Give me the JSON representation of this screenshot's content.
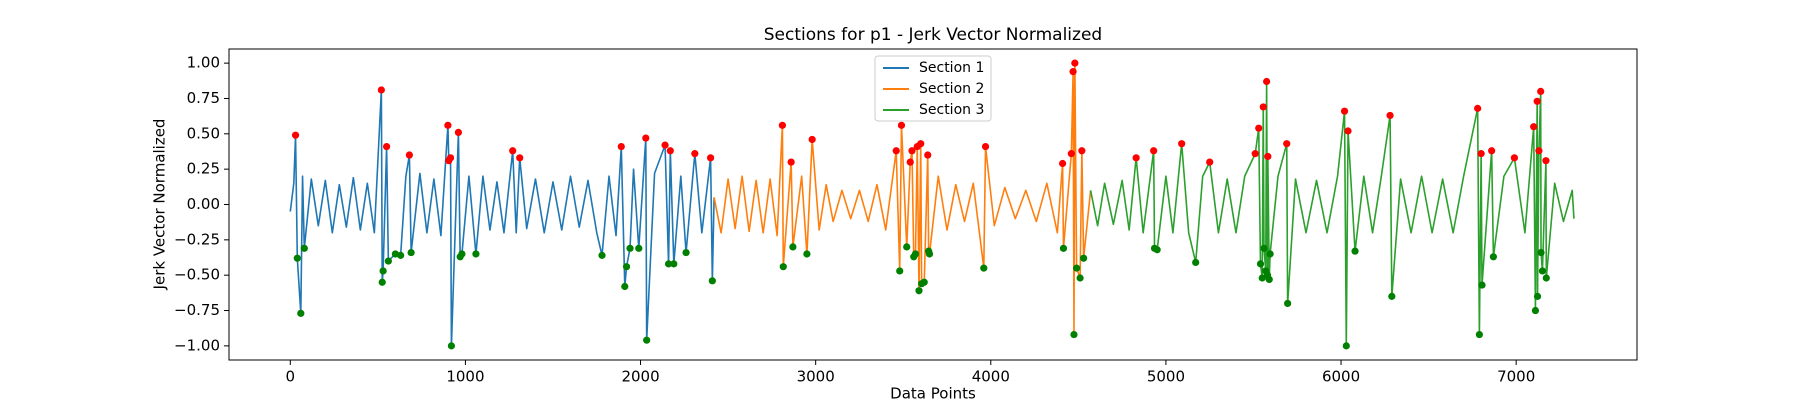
{
  "chart_data": {
    "type": "line",
    "title": "Sections for p1 - Jerk Vector Normalized",
    "xlabel": "Data Points",
    "ylabel": "Jerk Vector Normalized",
    "xlim": [
      -350,
      7690
    ],
    "ylim": [
      -1.1,
      1.1
    ],
    "xticks": [
      0,
      1000,
      2000,
      3000,
      4000,
      5000,
      6000,
      7000
    ],
    "yticks": [
      {
        "value": -1,
        "label": "−1.00"
      },
      {
        "value": -0.75,
        "label": "−0.75"
      },
      {
        "value": -0.5,
        "label": "−0.50"
      },
      {
        "value": -0.25,
        "label": "−0.25"
      },
      {
        "value": 0,
        "label": "0.00"
      },
      {
        "value": 0.25,
        "label": "0.25"
      },
      {
        "value": 0.5,
        "label": "0.50"
      },
      {
        "value": 0.75,
        "label": "0.75"
      },
      {
        "value": 1,
        "label": "1.00"
      }
    ],
    "legend": "upper center",
    "series": [
      {
        "name": "Section 1",
        "color": "#1f77b4",
        "x": [
          0,
          20,
          30,
          40,
          60,
          70,
          80,
          120,
          160,
          200,
          240,
          280,
          320,
          360,
          400,
          440,
          480,
          520,
          525,
          530,
          550,
          560,
          600,
          630,
          660,
          680,
          690,
          740,
          780,
          820,
          860,
          900,
          905,
          915,
          920,
          960,
          970,
          980,
          1020,
          1060,
          1100,
          1140,
          1180,
          1220,
          1270,
          1290,
          1310,
          1350,
          1400,
          1450,
          1500,
          1550,
          1600,
          1650,
          1700,
          1750,
          1780,
          1820,
          1860,
          1890,
          1910,
          1920,
          1940,
          1960,
          1990,
          2030,
          2035,
          2080,
          2140,
          2160,
          2170,
          2190,
          2230,
          2260,
          2310,
          2350,
          2400,
          2410,
          2420
        ],
        "values": [
          -0.05,
          0.15,
          0.49,
          -0.38,
          -0.77,
          0.2,
          -0.31,
          0.18,
          -0.15,
          0.17,
          -0.2,
          0.14,
          -0.16,
          0.19,
          -0.18,
          0.15,
          -0.2,
          0.81,
          -0.55,
          -0.47,
          0.41,
          -0.4,
          -0.35,
          -0.36,
          0.2,
          0.35,
          -0.34,
          0.22,
          -0.2,
          0.18,
          -0.22,
          0.56,
          0.31,
          0.33,
          -1.0,
          0.51,
          -0.37,
          -0.35,
          0.2,
          -0.35,
          0.2,
          -0.18,
          0.16,
          -0.2,
          0.38,
          -0.2,
          0.33,
          -0.17,
          0.18,
          -0.2,
          0.16,
          -0.18,
          0.2,
          -0.16,
          0.17,
          -0.2,
          -0.36,
          0.2,
          -0.22,
          0.41,
          -0.58,
          -0.44,
          -0.31,
          0.25,
          -0.31,
          0.47,
          -0.96,
          0.22,
          0.42,
          -0.42,
          0.38,
          -0.42,
          0.2,
          -0.34,
          0.36,
          -0.2,
          0.33,
          -0.54,
          0.05
        ]
      },
      {
        "name": "Section 2",
        "color": "#ff7f0e",
        "x": [
          2420,
          2460,
          2500,
          2540,
          2580,
          2620,
          2660,
          2700,
          2740,
          2780,
          2810,
          2815,
          2860,
          2870,
          2920,
          2950,
          2980,
          3020,
          3060,
          3100,
          3150,
          3200,
          3250,
          3300,
          3350,
          3400,
          3460,
          3480,
          3490,
          3520,
          3540,
          3550,
          3560,
          3570,
          3580,
          3590,
          3600,
          3605,
          3620,
          3640,
          3645,
          3650,
          3700,
          3750,
          3800,
          3850,
          3900,
          3960,
          3970,
          4020,
          4080,
          4140,
          4200,
          4260,
          4320,
          4380,
          4410,
          4415,
          4460,
          4470,
          4475,
          4480,
          4490,
          4510,
          4520,
          4530,
          4570
        ],
        "values": [
          0.05,
          -0.2,
          0.18,
          -0.17,
          0.2,
          -0.19,
          0.17,
          -0.2,
          0.18,
          -0.22,
          0.56,
          -0.44,
          0.3,
          -0.3,
          0.2,
          -0.35,
          0.46,
          -0.18,
          0.14,
          -0.12,
          0.1,
          -0.1,
          0.1,
          -0.12,
          0.14,
          -0.18,
          0.38,
          -0.47,
          0.56,
          -0.3,
          0.3,
          0.38,
          -0.37,
          -0.35,
          0.41,
          -0.61,
          0.43,
          -0.56,
          -0.55,
          0.35,
          -0.33,
          -0.35,
          0.2,
          -0.18,
          0.14,
          -0.12,
          0.15,
          -0.45,
          0.41,
          -0.15,
          0.12,
          -0.1,
          0.1,
          -0.12,
          0.15,
          -0.2,
          0.29,
          -0.31,
          0.36,
          0.94,
          -0.92,
          1.0,
          -0.45,
          -0.52,
          0.38,
          -0.38,
          0.1
        ]
      },
      {
        "name": "Section 3",
        "color": "#2ca02c",
        "x": [
          4570,
          4610,
          4650,
          4700,
          4750,
          4790,
          4830,
          4870,
          4930,
          4935,
          4950,
          5000,
          5040,
          5090,
          5130,
          5170,
          5210,
          5250,
          5300,
          5350,
          5400,
          5450,
          5510,
          5530,
          5540,
          5550,
          5556,
          5560,
          5570,
          5575,
          5580,
          5582,
          5590,
          5595,
          5640,
          5690,
          5695,
          5740,
          5800,
          5860,
          5920,
          5980,
          6020,
          6030,
          6040,
          6080,
          6130,
          6180,
          6230,
          6280,
          6290,
          6340,
          6400,
          6460,
          6520,
          6580,
          6640,
          6700,
          6780,
          6790,
          6800,
          6805,
          6860,
          6870,
          6930,
          6990,
          7050,
          7100,
          7110,
          7120,
          7122,
          7130,
          7140,
          7142,
          7150,
          7170,
          7172,
          7220,
          7270,
          7320,
          7330
        ],
        "values": [
          0.1,
          -0.15,
          0.15,
          -0.14,
          0.17,
          -0.18,
          0.33,
          -0.2,
          0.38,
          -0.31,
          -0.32,
          0.2,
          -0.2,
          0.43,
          -0.2,
          -0.41,
          0.2,
          0.3,
          -0.2,
          0.18,
          -0.2,
          0.2,
          0.36,
          0.54,
          -0.42,
          -0.52,
          0.69,
          -0.31,
          -0.47,
          0.87,
          -0.5,
          0.34,
          -0.53,
          -0.35,
          0.2,
          0.43,
          -0.7,
          0.18,
          -0.2,
          0.17,
          -0.2,
          0.2,
          0.66,
          -1.0,
          0.52,
          -0.33,
          0.2,
          -0.2,
          0.2,
          0.63,
          -0.65,
          0.18,
          -0.2,
          0.2,
          -0.2,
          0.18,
          -0.2,
          0.2,
          0.68,
          -0.92,
          0.36,
          -0.57,
          0.38,
          -0.37,
          0.2,
          0.33,
          -0.2,
          0.55,
          -0.75,
          0.73,
          -0.65,
          0.38,
          0.8,
          -0.34,
          -0.47,
          0.31,
          -0.52,
          0.15,
          -0.12,
          0.1,
          -0.1
        ]
      }
    ],
    "markers": [
      {
        "color": "#ff0000",
        "x": [
          30,
          520,
          550,
          680,
          900,
          905,
          915,
          960,
          1270,
          1310,
          1890,
          2030,
          2140,
          2170,
          2310,
          2400,
          2810,
          2860,
          2980,
          3460,
          3490,
          3540,
          3550,
          3580,
          3600,
          3640,
          3970,
          4410,
          4460,
          4470,
          4480,
          4520,
          4830,
          4930,
          5090,
          5250,
          5510,
          5530,
          5556,
          5575,
          5582,
          5690,
          6020,
          6040,
          6280,
          6780,
          6800,
          6860,
          6990,
          7100,
          7120,
          7130,
          7140,
          7170
        ],
        "y": [
          0.49,
          0.81,
          0.41,
          0.35,
          0.56,
          0.31,
          0.33,
          0.51,
          0.38,
          0.33,
          0.41,
          0.47,
          0.42,
          0.38,
          0.36,
          0.33,
          0.56,
          0.3,
          0.46,
          0.38,
          0.56,
          0.3,
          0.38,
          0.41,
          0.43,
          0.35,
          0.41,
          0.29,
          0.36,
          0.94,
          1.0,
          0.38,
          0.33,
          0.38,
          0.43,
          0.3,
          0.36,
          0.54,
          0.69,
          0.87,
          0.34,
          0.43,
          0.66,
          0.52,
          0.63,
          0.68,
          0.36,
          0.38,
          0.33,
          0.55,
          0.73,
          0.38,
          0.8,
          0.31
        ]
      },
      {
        "color": "#008000",
        "x": [
          40,
          60,
          80,
          525,
          530,
          560,
          600,
          630,
          690,
          920,
          970,
          980,
          1060,
          1780,
          1910,
          1920,
          1940,
          1990,
          2035,
          2160,
          2190,
          2260,
          2410,
          2815,
          2870,
          2950,
          3480,
          3520,
          3560,
          3570,
          3590,
          3605,
          3620,
          3645,
          3650,
          3960,
          4415,
          4475,
          4490,
          4510,
          4530,
          4935,
          4950,
          5170,
          5540,
          5550,
          5560,
          5570,
          5580,
          5590,
          5595,
          5695,
          6030,
          6080,
          6290,
          6790,
          6805,
          6870,
          7110,
          7122,
          7142,
          7150,
          7172
        ],
        "y": [
          -0.38,
          -0.77,
          -0.31,
          -0.55,
          -0.47,
          -0.4,
          -0.35,
          -0.36,
          -0.34,
          -1.0,
          -0.37,
          -0.35,
          -0.35,
          -0.36,
          -0.58,
          -0.44,
          -0.31,
          -0.31,
          -0.96,
          -0.42,
          -0.42,
          -0.34,
          -0.54,
          -0.44,
          -0.3,
          -0.35,
          -0.47,
          -0.3,
          -0.37,
          -0.35,
          -0.61,
          -0.56,
          -0.55,
          -0.33,
          -0.35,
          -0.45,
          -0.31,
          -0.92,
          -0.45,
          -0.52,
          -0.38,
          -0.31,
          -0.32,
          -0.41,
          -0.42,
          -0.52,
          -0.31,
          -0.47,
          -0.5,
          -0.53,
          -0.35,
          -0.7,
          -1.0,
          -0.33,
          -0.65,
          -0.92,
          -0.57,
          -0.37,
          -0.75,
          -0.65,
          -0.34,
          -0.47,
          -0.52
        ]
      }
    ]
  }
}
